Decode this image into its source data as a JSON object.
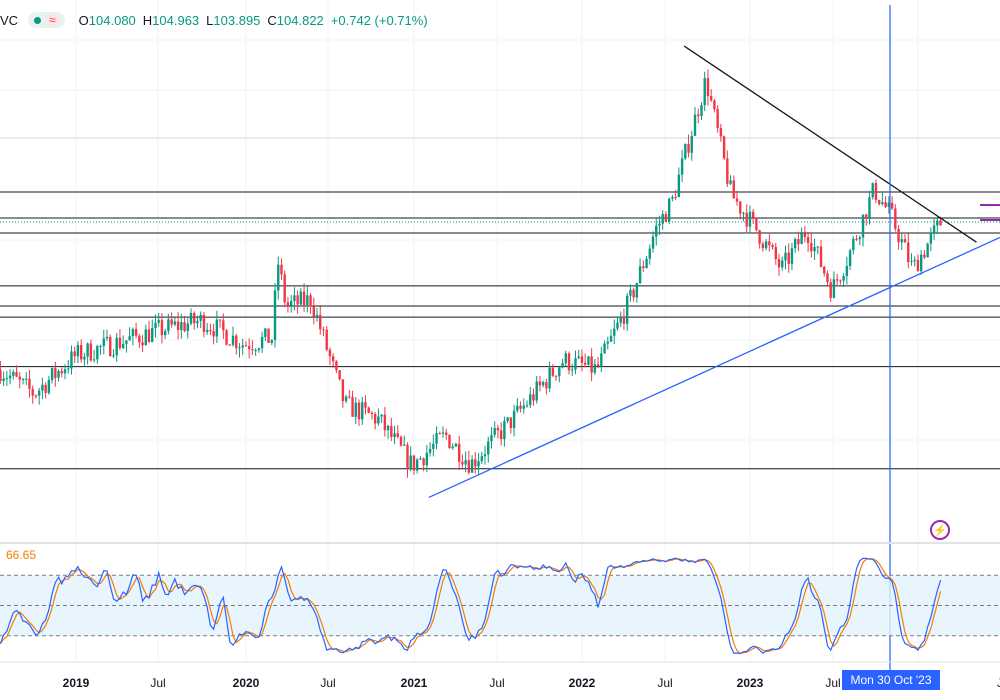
{
  "legend": {
    "symbol": "VC",
    "open_label": "O",
    "open": "104.080",
    "high_label": "H",
    "high": "104.963",
    "low_label": "L",
    "low": "103.895",
    "close_label": "C",
    "close": "104.822",
    "change": "+0.742 (+0.71%)"
  },
  "indicator": {
    "value_label": "66.65",
    "k_color": "#2962ff",
    "d_color": "#f57c00",
    "band_upper": 80,
    "band_mid": 50,
    "band_lower": 20
  },
  "crosshair": {
    "date_label": "Mon 30 Oct '23"
  },
  "time_axis": {
    "labels": [
      {
        "text": "2019",
        "year": true
      },
      {
        "text": "Jul",
        "year": false
      },
      {
        "text": "2020",
        "year": true
      },
      {
        "text": "Jul",
        "year": false
      },
      {
        "text": "2021",
        "year": true
      },
      {
        "text": "Jul",
        "year": false
      },
      {
        "text": "2022",
        "year": true
      },
      {
        "text": "Jul",
        "year": false
      },
      {
        "text": "2023",
        "year": true
      },
      {
        "text": "Jul",
        "year": false
      },
      {
        "text": "J",
        "year": false
      }
    ]
  },
  "colors": {
    "up": "#089981",
    "down": "#f23645",
    "hline": "#131722",
    "trend_up": "#2962ff",
    "trend_down": "#131722",
    "marker": "#9c27b0"
  },
  "chart_data": {
    "type": "candlestick",
    "interval": "weekly",
    "price_path": [
      [
        2018.55,
        95.5
      ],
      [
        2018.75,
        94.0
      ],
      [
        2019.0,
        96.4
      ],
      [
        2019.5,
        98.0
      ],
      [
        2019.75,
        98.6
      ],
      [
        2020.0,
        97.1
      ],
      [
        2020.17,
        97.5
      ],
      [
        2020.2,
        102.4
      ],
      [
        2020.25,
        99.5
      ],
      [
        2020.4,
        99.9
      ],
      [
        2020.6,
        93.3
      ],
      [
        2020.8,
        92.4
      ],
      [
        2021.0,
        89.5
      ],
      [
        2021.2,
        91.4
      ],
      [
        2021.35,
        89.6
      ],
      [
        2021.6,
        92.4
      ],
      [
        2021.9,
        96.1
      ],
      [
        2022.1,
        95.5
      ],
      [
        2022.3,
        99.9
      ],
      [
        2022.45,
        104.3
      ],
      [
        2022.55,
        106.1
      ],
      [
        2022.75,
        113.7
      ],
      [
        2022.9,
        106.5
      ],
      [
        2023.05,
        104.3
      ],
      [
        2023.2,
        101.8
      ],
      [
        2023.35,
        104.3
      ],
      [
        2023.5,
        100.5
      ],
      [
        2023.6,
        102.7
      ],
      [
        2023.75,
        106.8
      ],
      [
        2023.85,
        105.2
      ],
      [
        2023.98,
        101.8
      ],
      [
        2024.15,
        104.8
      ]
    ],
    "horizontal_levels": [
      106.65,
      105.02,
      104.08,
      100.76,
      99.5,
      98.8,
      95.7,
      89.3
    ],
    "trendlines": [
      {
        "kind": "resistance",
        "from": [
          2022.62,
          115.8
        ],
        "to": [
          2024.36,
          103.5
        ]
      },
      {
        "kind": "support",
        "from": [
          2021.1,
          87.5
        ],
        "to": [
          2024.5,
          103.8
        ]
      }
    ],
    "oscillator": {
      "type": "stochastic",
      "last": 66.65,
      "range": [
        0,
        100
      ]
    }
  }
}
